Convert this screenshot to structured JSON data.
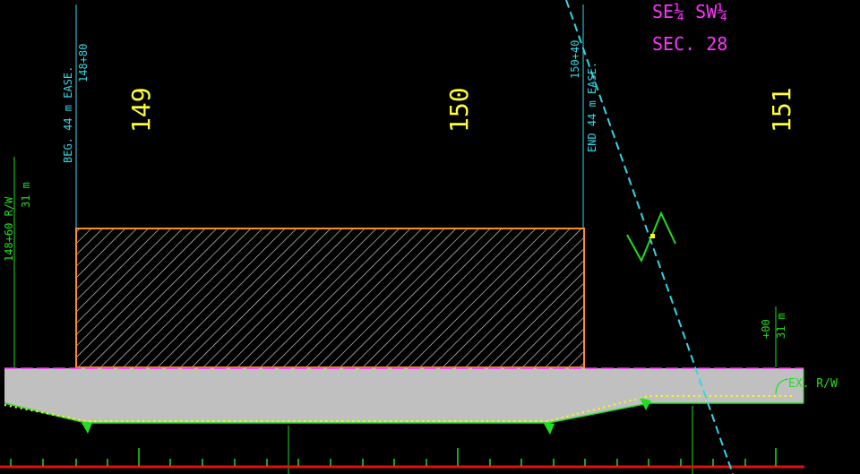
{
  "sheet": {
    "section_label": "SE¼ SW¼",
    "section_number": "SEC. 28"
  },
  "stations": [
    "149",
    "150",
    "151"
  ],
  "easement": {
    "beg_label": "BEG. 44 m EASE.",
    "beg_station": "148+80",
    "end_station": "150+40",
    "end_label": "END 44 m EASE."
  },
  "right_of_way": {
    "left_station": "148+60 R/W",
    "left_width": "31 m",
    "right_station": "+00",
    "right_width": "31 m",
    "existing_label": "EX. R/W"
  },
  "colors": {
    "background": "#000000",
    "easement_lines": "#33d6e6",
    "station_text": "#ffff33",
    "row_lines": "#22dd22",
    "section_text": "#ff33ff",
    "hatch_border": "#ff8c1a",
    "road_fill": "#c0c0c0",
    "baseline": "#e01010"
  }
}
